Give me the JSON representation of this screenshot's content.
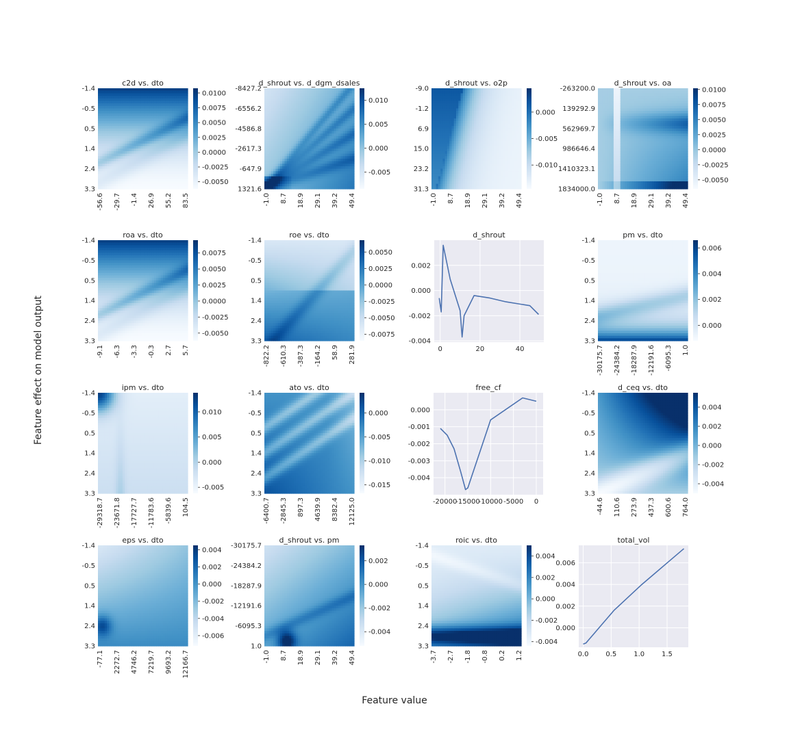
{
  "figure": {
    "xlabel": "Feature value",
    "ylabel": "Feature effect on model output",
    "colormap": "Blues",
    "line_color": "#4c72b0",
    "line_panel_bg": "#eaeaf2"
  },
  "chart_data": [
    {
      "type": "heatmap",
      "title": "c2d vs. dto",
      "xticks": [
        "-56.6",
        "-29.7",
        "-1.4",
        "26.9",
        "55.2",
        "83.5"
      ],
      "yticks": [
        "-1.4",
        "-0.5",
        "0.5",
        "1.4",
        "2.4",
        "3.3"
      ],
      "colorbar": {
        "ticks": [
          "0.0100",
          "0.0075",
          "0.0050",
          "0.0025",
          "0.0000",
          "-0.0025",
          "-0.0050"
        ],
        "range": [
          -0.0062,
          0.0108
        ]
      },
      "pattern": "top-dark"
    },
    {
      "type": "heatmap",
      "title": "d_shrout vs. d_dgm_dsales",
      "xticks": [
        "-1.0",
        "8.7",
        "18.9",
        "29.1",
        "39.2",
        "49.4"
      ],
      "yticks": [
        "-8427.2",
        "-6556.2",
        "-4586.8",
        "-2617.3",
        "-647.9",
        "1321.6"
      ],
      "colorbar": {
        "ticks": [
          "0.010",
          "0.005",
          "0.000",
          "-0.005"
        ],
        "range": [
          -0.0085,
          0.0125
        ]
      },
      "pattern": "fan-br"
    },
    {
      "type": "heatmap",
      "title": "d_shrout vs. o2p",
      "xticks": [
        "-1.0",
        "8.7",
        "18.9",
        "29.1",
        "39.2",
        "49.4"
      ],
      "yticks": [
        "-9.0",
        "-1.2",
        "6.9",
        "15.0",
        "23.2",
        "31.3"
      ],
      "colorbar": {
        "ticks": [
          "0.000",
          "-0.005",
          "-0.010"
        ],
        "range": [
          -0.0145,
          0.0045
        ]
      },
      "pattern": "left-diag"
    },
    {
      "type": "heatmap",
      "title": "d_shrout vs. oa",
      "xticks": [
        "-1.0",
        "8.7",
        "18.9",
        "29.1",
        "39.2",
        "49.4"
      ],
      "yticks": [
        "-263200.0",
        "139292.9",
        "562969.7",
        "986646.4",
        "1410323.1",
        "1834000.0"
      ],
      "colorbar": {
        "ticks": [
          "0.0100",
          "0.0075",
          "0.0050",
          "0.0025",
          "0.0000",
          "-0.0025",
          "-0.0050"
        ],
        "range": [
          -0.0065,
          0.0102
        ]
      },
      "pattern": "mid-bands"
    },
    {
      "type": "heatmap",
      "title": "roa vs. dto",
      "xticks": [
        "-9.1",
        "-6.3",
        "-3.3",
        "-0.3",
        "2.7",
        "5.7"
      ],
      "yticks": [
        "-1.4",
        "-0.5",
        "0.5",
        "1.4",
        "2.4",
        "3.3"
      ],
      "colorbar": {
        "ticks": [
          "0.0075",
          "0.0050",
          "0.0025",
          "0.0000",
          "-0.0025",
          "-0.0050"
        ],
        "range": [
          -0.0062,
          0.0095
        ]
      },
      "pattern": "top-dark"
    },
    {
      "type": "heatmap",
      "title": "roe vs. dto",
      "xticks": [
        "-822.2",
        "-610.3",
        "-387.3",
        "-164.2",
        "58.9",
        "281.9"
      ],
      "yticks": [
        "-1.4",
        "-0.5",
        "0.5",
        "1.4",
        "2.4",
        "3.3"
      ],
      "colorbar": {
        "ticks": [
          "0.0050",
          "0.0025",
          "0.0000",
          "-0.0025",
          "-0.0050",
          "-0.0075"
        ],
        "range": [
          -0.0085,
          0.0068
        ]
      },
      "pattern": "diag-bl"
    },
    {
      "type": "line",
      "title": "d_shrout",
      "x": [
        -0.5,
        0.5,
        1.5,
        5.0,
        10.0,
        11.0,
        12.0,
        17.0,
        25.0,
        33.0,
        45.0,
        49.4
      ],
      "y": [
        -0.0006,
        -0.0017,
        0.0036,
        0.0009,
        -0.0016,
        -0.0037,
        -0.002,
        -0.0004,
        -0.0006,
        -0.0009,
        -0.0012,
        -0.0019
      ],
      "xlim": [
        -3,
        52
      ],
      "ylim": [
        -0.0041,
        0.004
      ],
      "xticks": [
        0,
        20,
        40
      ],
      "yticks": [
        -0.004,
        -0.002,
        0.0,
        0.002
      ],
      "xtick_labels": [
        "0",
        "20",
        "40"
      ],
      "ytick_labels": [
        "-0.004",
        "-0.002",
        "0.000",
        "0.002"
      ]
    },
    {
      "type": "heatmap",
      "title": "pm vs. dto",
      "xticks": [
        "-30175.7",
        "-24384.2",
        "-18287.9",
        "-12191.6",
        "-6095.3",
        "1.0"
      ],
      "yticks": [
        "-1.4",
        "-0.5",
        "0.5",
        "1.4",
        "2.4",
        "3.3"
      ],
      "colorbar": {
        "ticks": [
          "0.006",
          "0.004",
          "0.002",
          "0.000"
        ],
        "range": [
          -0.0012,
          0.0066
        ]
      },
      "pattern": "bottom-dark"
    },
    {
      "type": "heatmap",
      "title": "ipm vs. dto",
      "xticks": [
        "-29318.7",
        "-23671.8",
        "-17727.7",
        "-11783.6",
        "-5839.6",
        "104.5"
      ],
      "yticks": [
        "-1.4",
        "-0.5",
        "0.5",
        "1.4",
        "2.4",
        "3.3"
      ],
      "colorbar": {
        "ticks": [
          "0.010",
          "0.005",
          "0.000",
          "-0.005"
        ],
        "range": [
          -0.0062,
          0.0138
        ]
      },
      "pattern": "corner-tl"
    },
    {
      "type": "heatmap",
      "title": "ato vs. dto",
      "xticks": [
        "-6400.7",
        "-2845.3",
        "897.3",
        "4639.9",
        "8382.4",
        "12125.0"
      ],
      "yticks": [
        "-1.4",
        "-0.5",
        "0.5",
        "1.4",
        "2.4",
        "3.3"
      ],
      "colorbar": {
        "ticks": [
          "0.000",
          "-0.005",
          "-0.010",
          "-0.015"
        ],
        "range": [
          -0.0168,
          0.0042
        ]
      },
      "pattern": "dark-diag"
    },
    {
      "type": "line",
      "title": "free_cf",
      "x": [
        -21000,
        -19500,
        -18000,
        -16500,
        -15500,
        -15000,
        -12000,
        -10000,
        -3000,
        0
      ],
      "y": [
        -0.0011,
        -0.0015,
        -0.0023,
        -0.0037,
        -0.0047,
        -0.0046,
        -0.0022,
        -0.0006,
        0.0007,
        0.0005
      ],
      "xlim": [
        -22500,
        1500
      ],
      "ylim": [
        -0.005,
        0.001
      ],
      "xticks": [
        -20000,
        -15000,
        -10000,
        -5000,
        0
      ],
      "yticks": [
        -0.004,
        -0.003,
        -0.002,
        -0.001,
        0.0
      ],
      "xtick_labels": [
        "-20000",
        "-15000",
        "-10000",
        "-5000",
        "0"
      ],
      "ytick_labels": [
        "-0.004",
        "-0.003",
        "-0.002",
        "-0.001",
        "0.000"
      ]
    },
    {
      "type": "heatmap",
      "title": "d_ceq vs. dto",
      "xticks": [
        "-44.6",
        "110.6",
        "273.9",
        "437.3",
        "600.6",
        "764.0"
      ],
      "yticks": [
        "-1.4",
        "-0.5",
        "0.5",
        "1.4",
        "2.4",
        "3.3"
      ],
      "colorbar": {
        "ticks": [
          "0.004",
          "0.002",
          "0.000",
          "-0.002",
          "-0.004"
        ],
        "range": [
          -0.005,
          0.0055
        ]
      },
      "pattern": "top-right-dark"
    },
    {
      "type": "heatmap",
      "title": "eps vs. dto",
      "xticks": [
        "-77.1",
        "2272.7",
        "4746.2",
        "7219.7",
        "9693.2",
        "12166.7"
      ],
      "yticks": [
        "-1.4",
        "-0.5",
        "0.5",
        "1.4",
        "2.4",
        "3.3"
      ],
      "colorbar": {
        "ticks": [
          "0.004",
          "0.002",
          "0.000",
          "-0.002",
          "-0.004",
          "-0.006"
        ],
        "range": [
          -0.0072,
          0.0045
        ]
      },
      "pattern": "bottom-left-dark"
    },
    {
      "type": "heatmap",
      "title": "d_shrout vs. pm",
      "xticks": [
        "-1.0",
        "8.7",
        "18.9",
        "29.1",
        "39.2",
        "49.4"
      ],
      "yticks": [
        "-30175.7",
        "-24384.2",
        "-18287.9",
        "-12191.6",
        "-6095.3",
        "1.0"
      ],
      "colorbar": {
        "ticks": [
          "0.002",
          "0.000",
          "-0.002",
          "-0.004"
        ],
        "range": [
          -0.0052,
          0.0033
        ]
      },
      "pattern": "bottom-dark-fan"
    },
    {
      "type": "heatmap",
      "title": "roic vs. dto",
      "xticks": [
        "-3.7",
        "-2.7",
        "-1.8",
        "-0.8",
        "0.2",
        "1.2"
      ],
      "yticks": [
        "-1.4",
        "-0.5",
        "0.5",
        "1.4",
        "2.4",
        "3.3"
      ],
      "colorbar": {
        "ticks": [
          "0.004",
          "0.002",
          "0.000",
          "-0.002",
          "-0.004"
        ],
        "range": [
          -0.0044,
          0.005
        ]
      },
      "pattern": "bottom-dark-br"
    },
    {
      "type": "line",
      "title": "total_vol",
      "x": [
        0.0,
        0.05,
        0.1,
        0.2,
        0.3,
        0.55,
        0.8,
        1.05,
        1.3,
        1.55,
        1.8
      ],
      "y": [
        -0.0015,
        -0.0014,
        -0.0011,
        -0.0005,
        0.0001,
        0.0016,
        0.0028,
        0.004,
        0.0051,
        0.0062,
        0.0073
      ],
      "xlim": [
        -0.08,
        1.88
      ],
      "ylim": [
        -0.0018,
        0.0076
      ],
      "xticks": [
        0.0,
        0.5,
        1.0,
        1.5
      ],
      "yticks": [
        0.0,
        0.002,
        0.004,
        0.006
      ],
      "xtick_labels": [
        "0.0",
        "0.5",
        "1.0",
        "1.5"
      ],
      "ytick_labels": [
        "0.000",
        "0.002",
        "0.004",
        "0.006"
      ]
    }
  ]
}
